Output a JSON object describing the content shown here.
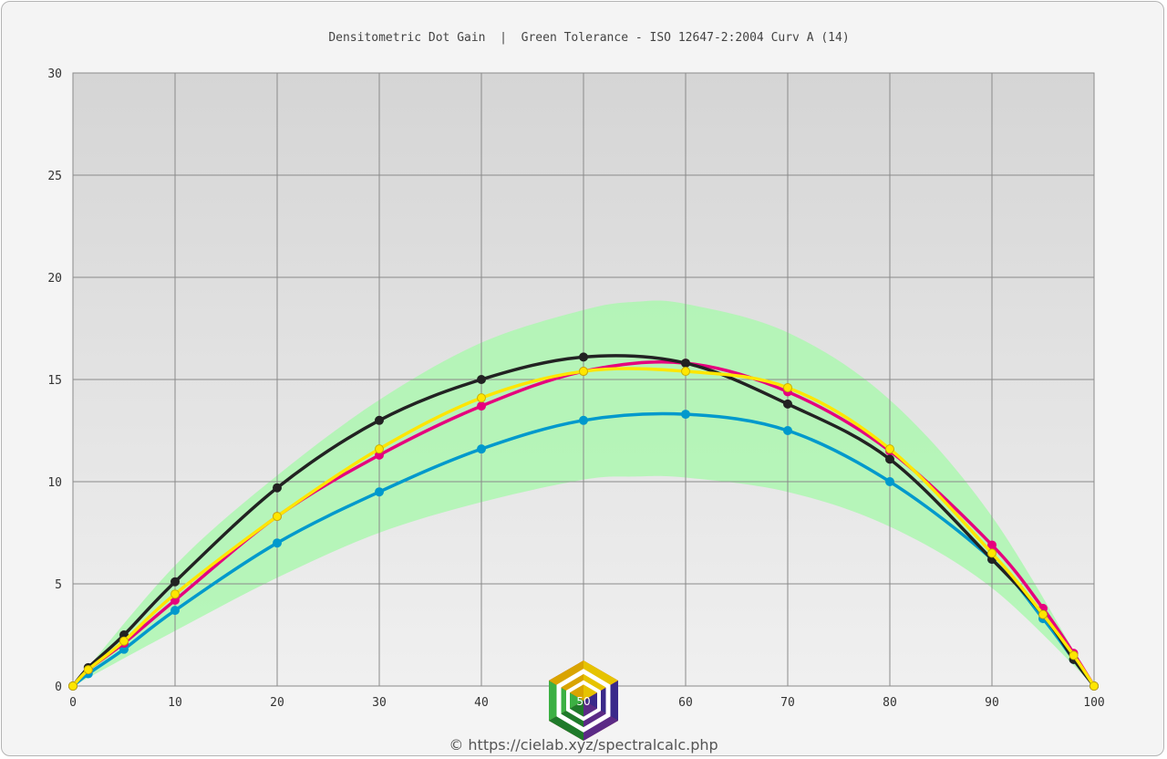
{
  "chart_data": {
    "type": "line",
    "title": "Densitometric Dot Gain  |  Green Tolerance - ISO 12647-2:2004 Curv A (14)",
    "xlim": [
      0,
      100
    ],
    "ylim": [
      0,
      30
    ],
    "x_ticks": [
      "0",
      "10",
      "20",
      "30",
      "40",
      "50",
      "60",
      "70",
      "80",
      "90",
      "100"
    ],
    "y_ticks": [
      "0",
      "5",
      "10",
      "15",
      "20",
      "25",
      "30"
    ],
    "grid": true,
    "tolerance_band": {
      "color": "#adf7b0",
      "x": [
        0,
        10,
        20,
        30,
        40,
        50,
        55,
        60,
        70,
        80,
        90,
        100
      ],
      "lower": [
        0,
        2.7,
        5.3,
        7.5,
        9.0,
        10.1,
        10.25,
        10.2,
        9.5,
        7.8,
        4.8,
        0
      ],
      "upper": [
        0,
        5.9,
        10.3,
        14.0,
        16.8,
        18.4,
        18.8,
        18.7,
        17.3,
        14.0,
        8.3,
        0
      ]
    },
    "series": [
      {
        "color": "#0099cc",
        "x": [
          0,
          1.5,
          5,
          10,
          20,
          30,
          40,
          50,
          60,
          70,
          80,
          90,
          95,
          98,
          100
        ],
        "y": [
          0,
          0.6,
          1.8,
          3.7,
          7.0,
          9.5,
          11.6,
          13.0,
          13.3,
          12.5,
          10.0,
          6.2,
          3.3,
          1.3,
          0
        ]
      },
      {
        "color": "#e6007e",
        "x": [
          0,
          1.5,
          5,
          10,
          20,
          30,
          40,
          50,
          60,
          70,
          80,
          90,
          95,
          98,
          100
        ],
        "y": [
          0,
          0.8,
          2.1,
          4.2,
          8.3,
          11.3,
          13.7,
          15.4,
          15.8,
          14.4,
          11.5,
          6.9,
          3.8,
          1.6,
          0
        ]
      },
      {
        "color": "#222222",
        "x": [
          0,
          1.5,
          5,
          10,
          20,
          30,
          40,
          50,
          60,
          70,
          80,
          90,
          95,
          98,
          100
        ],
        "y": [
          0,
          0.9,
          2.5,
          5.1,
          9.7,
          13.0,
          15.0,
          16.1,
          15.8,
          13.8,
          11.1,
          6.2,
          3.5,
          1.3,
          0
        ]
      },
      {
        "color": "#ffe600",
        "x": [
          0,
          1.5,
          5,
          10,
          20,
          30,
          40,
          50,
          60,
          70,
          80,
          90,
          95,
          98,
          100
        ],
        "y": [
          0,
          0.8,
          2.2,
          4.5,
          8.3,
          11.6,
          14.1,
          15.4,
          15.4,
          14.6,
          11.6,
          6.5,
          3.5,
          1.5,
          0
        ]
      }
    ]
  },
  "logo": {
    "text": "50"
  },
  "credit": "© https://cielab.xyz/spectralcalc.php"
}
